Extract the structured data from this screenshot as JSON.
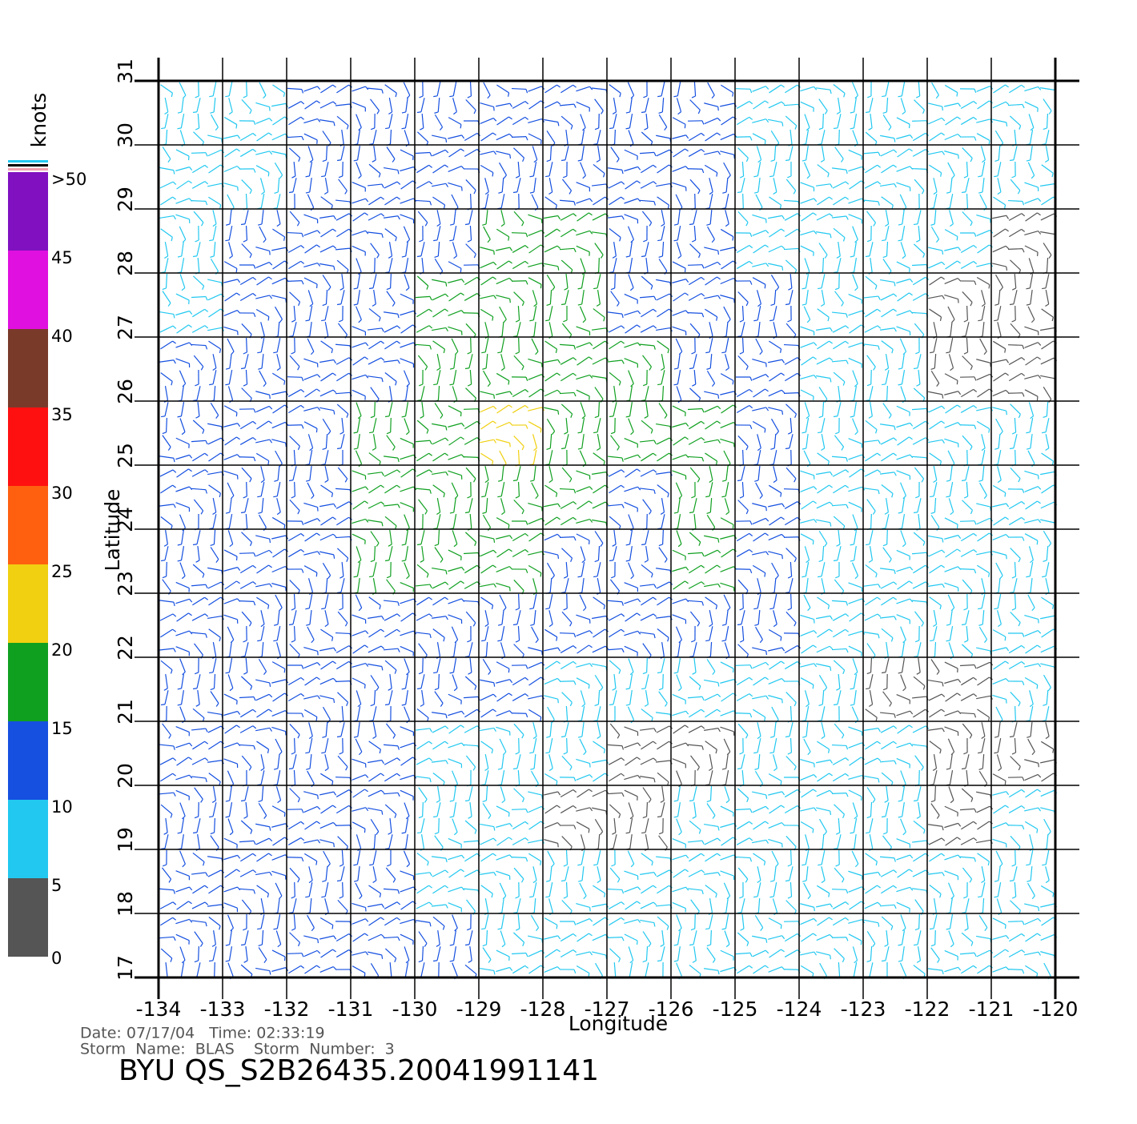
{
  "chart_data": {
    "type": "vector_field",
    "title": "BYU  QS_S2B26435.20041991141",
    "notes": [
      "Date: 07/17/04   Time: 02:33:19",
      "Storm  Name:  BLAS    Storm  Number:  3"
    ],
    "x_label": "Longitude",
    "y_label": "Latitude",
    "xlim": [
      -134,
      -120
    ],
    "ylim": [
      17,
      31
    ],
    "xticks": [
      -134,
      -133,
      -132,
      -131,
      -130,
      -129,
      -128,
      -127,
      -126,
      -125,
      -124,
      -123,
      -122,
      -121,
      -120
    ],
    "yticks": [
      17,
      18,
      19,
      20,
      21,
      22,
      23,
      24,
      25,
      26,
      27,
      28,
      29,
      30,
      31
    ],
    "grid": true,
    "x": [
      -133.5,
      -132.5,
      -131.5,
      -130.5,
      -129.5,
      -128.5,
      -127.5,
      -126.5,
      -125.5,
      -124.5,
      -123.5,
      -122.5,
      -121.5,
      -120.5
    ],
    "y": [
      30.5,
      29.5,
      28.5,
      27.5,
      26.5,
      25.5,
      24.5,
      23.5,
      22.5,
      21.5,
      20.5,
      19.5,
      18.5,
      17.5
    ],
    "values": [
      [
        8,
        8,
        10,
        10,
        11,
        12,
        12,
        11,
        10,
        9,
        8,
        8,
        7,
        6
      ],
      [
        8,
        9,
        11,
        12,
        13,
        13,
        13,
        12,
        10,
        9,
        8,
        8,
        7,
        5
      ],
      [
        8,
        10,
        12,
        13,
        14,
        15,
        15,
        13,
        11,
        9,
        8,
        8,
        7,
        4
      ],
      [
        9,
        11,
        13,
        14,
        15,
        16,
        16,
        14,
        12,
        10,
        8,
        8,
        4,
        3
      ],
      [
        10,
        12,
        13,
        14,
        17,
        19,
        18,
        15,
        13,
        11,
        9,
        8,
        4,
        4
      ],
      [
        11,
        12,
        14,
        16,
        18,
        21,
        19,
        15,
        15,
        12,
        9,
        8,
        6,
        5
      ],
      [
        11,
        13,
        14,
        17,
        19,
        19,
        16,
        14,
        17,
        12,
        9,
        8,
        6,
        5
      ],
      [
        11,
        13,
        14,
        15,
        16,
        15,
        14,
        13,
        15,
        12,
        9,
        8,
        6,
        6
      ],
      [
        10,
        12,
        13,
        13,
        13,
        12,
        12,
        11,
        11,
        10,
        8,
        6,
        5,
        6
      ],
      [
        10,
        12,
        12,
        11,
        10,
        10,
        9,
        9,
        8,
        8,
        7,
        4,
        4,
        5
      ],
      [
        10,
        12,
        11,
        10,
        9,
        8,
        5,
        4,
        4,
        6,
        5,
        5,
        4,
        4
      ],
      [
        11,
        12,
        11,
        10,
        8,
        5,
        4,
        4,
        6,
        5,
        5,
        6,
        4,
        6
      ],
      [
        12,
        12,
        11,
        11,
        9,
        7,
        7,
        8,
        7,
        7,
        7,
        7,
        8,
        7
      ],
      [
        13,
        14,
        13,
        12,
        11,
        9,
        8,
        8,
        9,
        8,
        8,
        8,
        8,
        8
      ]
    ],
    "colorbar": {
      "label": "knots",
      "lim": [
        0,
        50
      ],
      "ticks": [
        0,
        5,
        10,
        15,
        20,
        25,
        30,
        35,
        40,
        45,
        {
          "value": 50,
          "label": ">50"
        }
      ],
      "colors": [
        "#555555",
        "#22c8f0",
        "#1550e0",
        "#10a020",
        "#f0d010",
        "#ff6010",
        "#ff1010",
        "#7a3a2a",
        "#e010e0",
        "#8010c0"
      ]
    }
  }
}
